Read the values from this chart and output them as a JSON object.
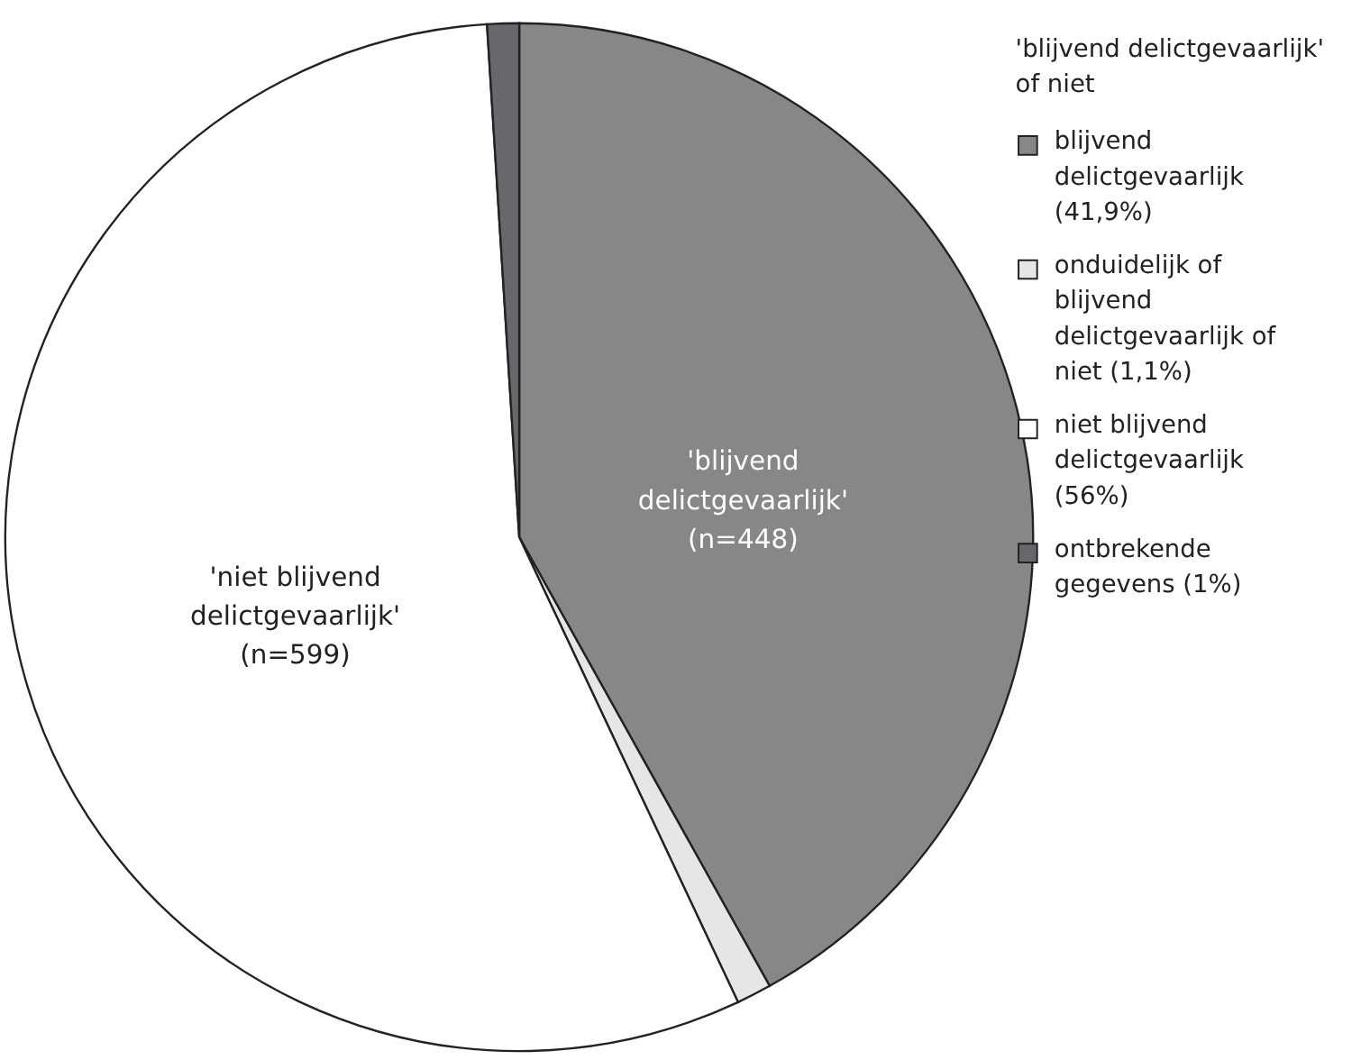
{
  "chart_data": {
    "type": "pie",
    "legend_title": "'blijvend delictgevaarlijk' of niet",
    "legend": "top right",
    "categories": [
      "blijvend delictgevaarlijk (41,9%)",
      "onduidelijk of blijvend delictgevaarlijk of niet (1,1%)",
      "niet blijvend delictgevaarlijk (56%)",
      "ontbrekende gegevens (1%)"
    ],
    "values": [
      41.9,
      1.1,
      56,
      1
    ],
    "colors": [
      "#878787",
      "#e6e6e8",
      "#ffffff",
      "#68686c"
    ],
    "annotations": [
      "'blijvend delictgevaarlijk' (n=448)",
      "'niet blijvend delictgevaarlijk' (n=599)"
    ]
  }
}
